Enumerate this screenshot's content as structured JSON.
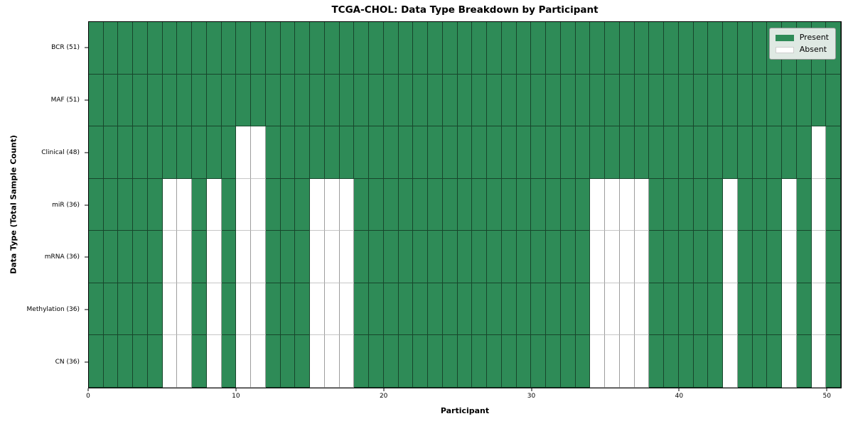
{
  "title": "TCGA-CHOL: Data Type Breakdown by Participant",
  "x_axis": {
    "label": "Participant",
    "tick_labels": [
      "0",
      "10",
      "20",
      "30",
      "40",
      "50"
    ]
  },
  "y_axis": {
    "label": "Data Type (Total Sample Count)"
  },
  "legend": {
    "present_label": "Present",
    "absent_label": "Absent",
    "position": "upper right"
  },
  "colors": {
    "present": "#2e8b57",
    "absent": "#ffffff",
    "grid_line": "rgba(0,0,0,0.5)",
    "legend_bg": "#dfe9e3",
    "legend_border": "#9a9a9a"
  },
  "chart_data": {
    "type": "heatmap",
    "title": "TCGA-CHOL: Data Type Breakdown by Participant",
    "xlabel": "Participant",
    "ylabel": "Data Type (Total Sample Count)",
    "n_participants": 51,
    "x_range": [
      0,
      51
    ],
    "x_ticks": [
      0,
      10,
      20,
      30,
      40,
      50
    ],
    "cell_states": [
      "Present",
      "Absent"
    ],
    "legend_position": "upper right",
    "rows": [
      {
        "label": "BCR (51)",
        "data_type": "BCR",
        "total_samples": 51,
        "absent_participants": []
      },
      {
        "label": "MAF (51)",
        "data_type": "MAF",
        "total_samples": 51,
        "absent_participants": []
      },
      {
        "label": "Clinical (48)",
        "data_type": "Clinical",
        "total_samples": 48,
        "absent_participants": [
          10,
          11,
          49
        ]
      },
      {
        "label": "miR (36)",
        "data_type": "miR",
        "total_samples": 36,
        "absent_participants": [
          5,
          6,
          8,
          10,
          11,
          15,
          16,
          17,
          34,
          35,
          36,
          37,
          43,
          47,
          49
        ]
      },
      {
        "label": "mRNA (36)",
        "data_type": "mRNA",
        "total_samples": 36,
        "absent_participants": [
          5,
          6,
          8,
          10,
          11,
          15,
          16,
          17,
          34,
          35,
          36,
          37,
          43,
          47,
          49
        ]
      },
      {
        "label": "Methylation (36)",
        "data_type": "Methylation",
        "total_samples": 36,
        "absent_participants": [
          5,
          6,
          8,
          10,
          11,
          15,
          16,
          17,
          34,
          35,
          36,
          37,
          43,
          47,
          49
        ]
      },
      {
        "label": "CN (36)",
        "data_type": "CN",
        "total_samples": 36,
        "absent_participants": [
          5,
          6,
          8,
          10,
          11,
          15,
          16,
          17,
          34,
          35,
          36,
          37,
          43,
          47,
          49
        ]
      }
    ]
  }
}
